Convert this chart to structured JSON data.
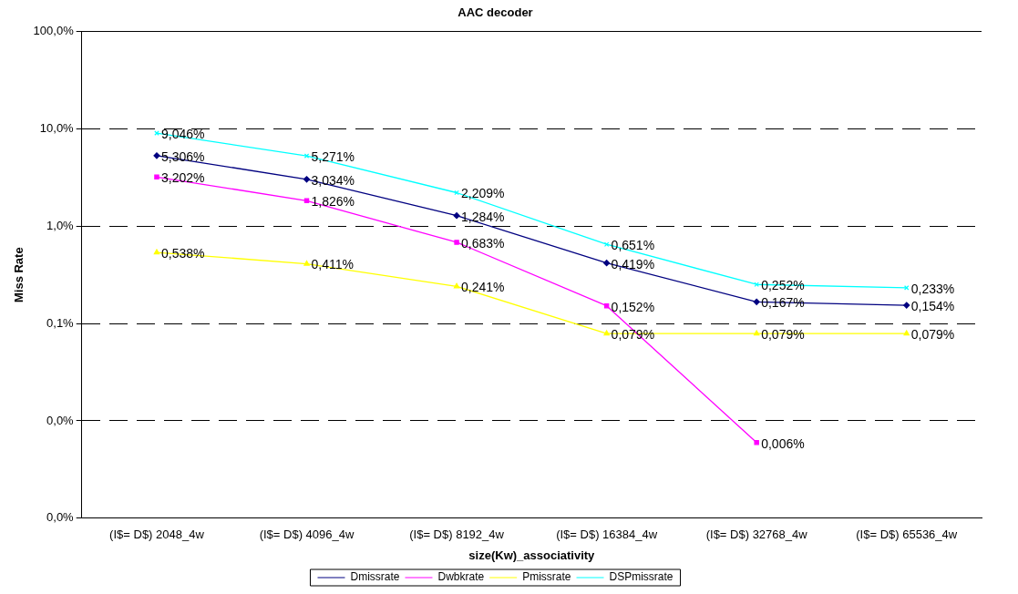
{
  "chart_data": {
    "type": "line",
    "title": "AAC decoder",
    "xlabel": "size(Kw)_associativity",
    "ylabel": "Miss Rate",
    "categories": [
      "(I$= D$) 2048_4w",
      "(I$= D$) 4096_4w",
      "(I$= D$) 8192_4w",
      "(I$= D$) 16384_4w",
      "(I$= D$) 32768_4w",
      "(I$= D$) 65536_4w"
    ],
    "log": "y",
    "ylim": [
      0.001,
      100
    ],
    "yticks": [
      {
        "value": 0.001,
        "label": "0,0%"
      },
      {
        "value": 0.01,
        "label": "0,0%"
      },
      {
        "value": 0.1,
        "label": "0,1%"
      },
      {
        "value": 1,
        "label": "1,0%"
      },
      {
        "value": 10,
        "label": "10,0%"
      },
      {
        "value": 100,
        "label": "100,0%"
      }
    ],
    "grid": "y",
    "legend": "bottom",
    "series": [
      {
        "name": "Dmissrate",
        "color": "#000080",
        "marker": "diamond",
        "values": [
          5.306,
          3.034,
          1.284,
          0.419,
          0.167,
          0.154
        ],
        "value_labels": [
          "5,306%",
          "3,034%",
          "1,284%",
          "0,419%",
          "0,167%",
          "0,154%"
        ]
      },
      {
        "name": "Dwbkrate",
        "color": "#ff00ff",
        "marker": "square",
        "values": [
          3.202,
          1.826,
          0.683,
          0.152,
          0.006,
          null
        ],
        "value_labels": [
          "3,202%",
          "1,826%",
          "0,683%",
          "0,152%",
          "0,006%",
          null
        ]
      },
      {
        "name": "Pmissrate",
        "color": "#ffff00",
        "marker": "triangle",
        "values": [
          0.538,
          0.411,
          0.241,
          0.079,
          0.079,
          0.079
        ],
        "value_labels": [
          "0,538%",
          "0,411%",
          "0,241%",
          "0,079%",
          "0,079%",
          "0,079%"
        ]
      },
      {
        "name": "DSPmissrate",
        "color": "#00ffff",
        "marker": "cross",
        "values": [
          9.046,
          5.271,
          2.209,
          0.651,
          0.252,
          0.233
        ],
        "value_labels": [
          "9,046%",
          "5,271%",
          "2,209%",
          "0,651%",
          "0,252%",
          "0,233%"
        ]
      }
    ]
  }
}
